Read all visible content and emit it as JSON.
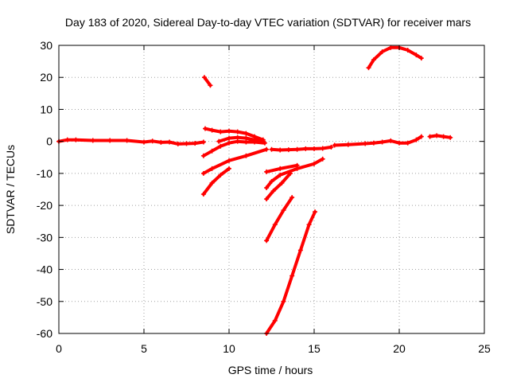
{
  "chart_data": {
    "type": "scatter",
    "title": "Day 183 of 2020, Sidereal Day-to-day VTEC variation (SDTVAR) for receiver mars",
    "xlabel": "GPS time / hours",
    "ylabel": "SDTVAR / TECUs",
    "xlim": [
      0,
      25
    ],
    "ylim": [
      -60,
      30
    ],
    "xticks": [
      0,
      5,
      10,
      15,
      20,
      25
    ],
    "yticks": [
      30,
      20,
      10,
      0,
      -10,
      -20,
      -30,
      -40,
      -50,
      -60
    ],
    "grid": true,
    "legend": "none",
    "color": "#ff0000",
    "series": [
      {
        "x": [
          0,
          0.5,
          1,
          2,
          3,
          4,
          5,
          5.5,
          6,
          6.5,
          7,
          7.5,
          8,
          8.5
        ],
        "y": [
          0,
          0.5,
          0.5,
          0.3,
          0.3,
          0.3,
          -0.2,
          0.1,
          -0.3,
          -0.2,
          -0.8,
          -0.7,
          -0.6,
          -0.2
        ]
      },
      {
        "x": [
          8.55,
          8.9
        ],
        "y": [
          20,
          17.5
        ]
      },
      {
        "x": [
          8.6,
          9,
          9.5,
          10,
          10.5,
          11,
          11.5,
          12
        ],
        "y": [
          4,
          3.5,
          3,
          3.2,
          3,
          2.5,
          1.5,
          0.5
        ]
      },
      {
        "x": [
          9.4,
          10,
          10.5,
          11,
          11.5,
          12
        ],
        "y": [
          0,
          1,
          1.2,
          1,
          0.5,
          0
        ]
      },
      {
        "x": [
          8.5,
          9,
          9.5,
          10,
          10.5,
          11,
          11.5,
          12.1
        ],
        "y": [
          -4.5,
          -3,
          -1.5,
          -0.5,
          0,
          -0.2,
          -0.2,
          -0.5
        ]
      },
      {
        "x": [
          8.5,
          9,
          10,
          11,
          12.2
        ],
        "y": [
          -10,
          -8.5,
          -6,
          -4.5,
          -2.5
        ]
      },
      {
        "x": [
          8.5,
          9,
          9.5,
          10
        ],
        "y": [
          -16.5,
          -13,
          -10.5,
          -8.5
        ]
      },
      {
        "x": [
          12.2,
          12.5,
          13,
          14,
          15,
          15.5
        ],
        "y": [
          -14.5,
          -12.5,
          -10.5,
          -8.5,
          -7,
          -5.5
        ]
      },
      {
        "x": [
          12.2,
          13,
          14
        ],
        "y": [
          -9.5,
          -8.5,
          -7.5
        ]
      },
      {
        "x": [
          12.2,
          12.6,
          13.1,
          13.6
        ],
        "y": [
          -18,
          -15.5,
          -13,
          -10
        ]
      },
      {
        "x": [
          12.2,
          12.7,
          13.2,
          13.7
        ],
        "y": [
          -31,
          -26,
          -21.5,
          -17.5
        ]
      },
      {
        "x": [
          12.2,
          12.7,
          13.2,
          13.7,
          14.2,
          14.7,
          15.05
        ],
        "y": [
          -60,
          -56,
          -50,
          -42,
          -34,
          -26,
          -22
        ]
      },
      {
        "x": [
          12.5,
          13,
          13.5,
          14,
          14.5,
          15,
          15.5,
          16
        ],
        "y": [
          -2.5,
          -2.7,
          -2.6,
          -2.5,
          -2.3,
          -2.3,
          -2.2,
          -1.8
        ]
      },
      {
        "x": [
          16.2,
          17,
          18,
          18.5,
          19,
          19.5,
          20,
          20.5,
          21,
          21.3
        ],
        "y": [
          -1.2,
          -1,
          -0.7,
          -0.5,
          -0.2,
          0.2,
          -0.5,
          -0.5,
          0.5,
          1.5
        ]
      },
      {
        "x": [
          18.2,
          18.5,
          19,
          19.5,
          20,
          20.5,
          21,
          21.3
        ],
        "y": [
          23,
          25.5,
          28,
          29.3,
          29.3,
          28.5,
          27,
          26
        ]
      },
      {
        "x": [
          21.8,
          22.2,
          22.6,
          23
        ],
        "y": [
          1.5,
          1.8,
          1.5,
          1.2
        ]
      }
    ]
  }
}
